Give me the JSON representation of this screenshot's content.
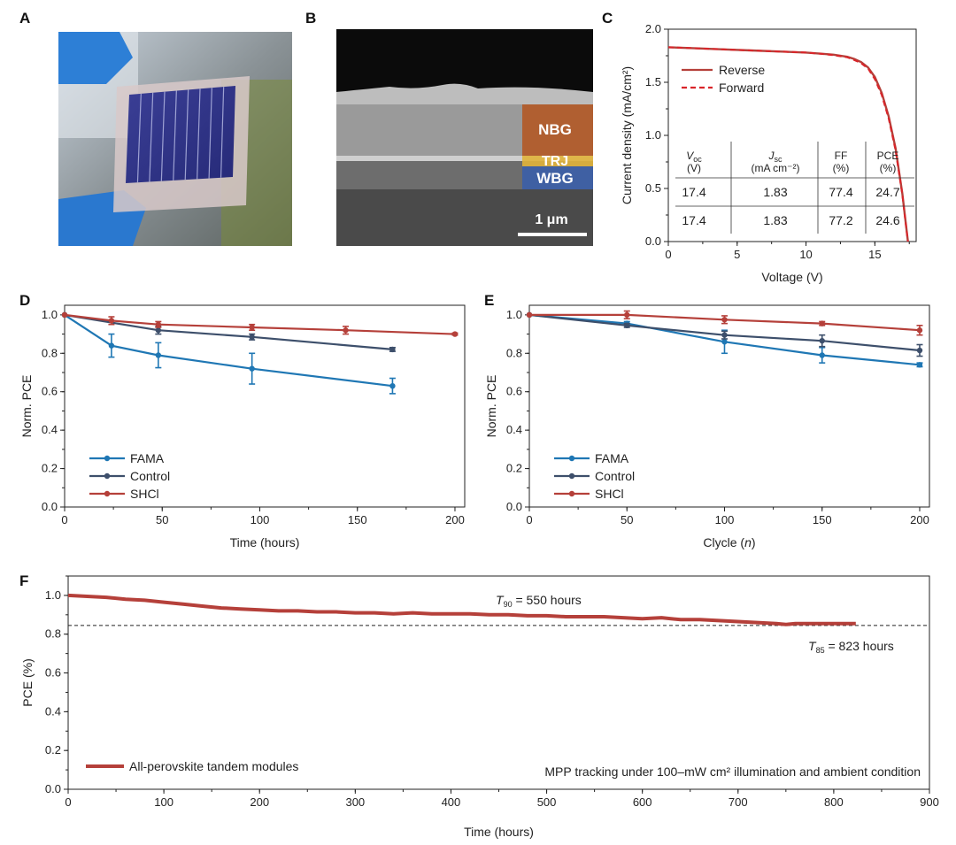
{
  "panels": {
    "A": "A",
    "B": "B",
    "C": "C",
    "D": "D",
    "E": "E",
    "F": "F"
  },
  "panel_b": {
    "layers": [
      "NBG",
      "TRJ",
      "WBG"
    ],
    "scalebar": "1 μm"
  },
  "chart_data": [
    {
      "id": "C",
      "type": "line",
      "xlabel": "Voltage (V)",
      "ylabel": "Current density (mA/cm²)",
      "xlim": [
        0,
        18
      ],
      "ylim": [
        0,
        2.0
      ],
      "xticks": [
        "0",
        "5",
        "10",
        "15"
      ],
      "yticks": [
        "0.0",
        "0.5",
        "1.0",
        "1.5",
        "2.0"
      ],
      "legend_position": "upper-left",
      "series": [
        {
          "name": "Reverse",
          "color": "#b5403a",
          "dash": "solid",
          "x": [
            0,
            2,
            4,
            6,
            8,
            10,
            11,
            12,
            13,
            13.5,
            14,
            14.5,
            15,
            15.5,
            16,
            16.5,
            17,
            17.2,
            17.4
          ],
          "y": [
            1.83,
            1.82,
            1.81,
            1.8,
            1.79,
            1.78,
            1.77,
            1.76,
            1.74,
            1.72,
            1.69,
            1.64,
            1.55,
            1.4,
            1.18,
            0.88,
            0.45,
            0.22,
            0.0
          ]
        },
        {
          "name": "Forward",
          "color": "#d9252a",
          "dash": "dashed",
          "x": [
            0,
            2,
            4,
            6,
            8,
            10,
            11,
            12,
            13,
            13.5,
            14,
            14.5,
            15,
            15.5,
            16,
            16.5,
            17,
            17.2,
            17.4
          ],
          "y": [
            1.83,
            1.82,
            1.81,
            1.8,
            1.79,
            1.78,
            1.77,
            1.755,
            1.735,
            1.71,
            1.68,
            1.63,
            1.53,
            1.38,
            1.16,
            0.86,
            0.44,
            0.21,
            0.0
          ]
        }
      ],
      "table": {
        "headers": [
          "V_oc (V)",
          "J_sc (mA cm⁻²)",
          "FF (%)",
          "PCE (%)"
        ],
        "header_main": [
          "V",
          "J",
          "FF",
          "PCE"
        ],
        "header_sub": [
          "oc",
          "sc",
          "",
          ""
        ],
        "header_unit": [
          "(V)",
          "(mA cm⁻²)",
          "(%)",
          "(%)"
        ],
        "rows": [
          [
            "17.4",
            "1.83",
            "77.4",
            "24.7"
          ],
          [
            "17.4",
            "1.83",
            "77.2",
            "24.6"
          ]
        ]
      }
    },
    {
      "id": "D",
      "type": "line",
      "xlabel": "Time (hours)",
      "ylabel": "Norm. PCE",
      "xlim": [
        0,
        205
      ],
      "ylim": [
        0,
        1.05
      ],
      "xticks": [
        "0",
        "50",
        "100",
        "150",
        "200"
      ],
      "yticks": [
        "0.0",
        "0.2",
        "0.4",
        "0.6",
        "0.8",
        "1.0"
      ],
      "legend_position": "lower-left",
      "series": [
        {
          "name": "FAMA",
          "color": "#1f77b4",
          "x": [
            0,
            24,
            48,
            96,
            168
          ],
          "y": [
            1.0,
            0.84,
            0.79,
            0.72,
            0.63
          ],
          "err": [
            0,
            0.06,
            0.065,
            0.08,
            0.04
          ]
        },
        {
          "name": "Control",
          "color": "#3d4f6b",
          "x": [
            0,
            48,
            96,
            168
          ],
          "y": [
            1.0,
            0.92,
            0.885,
            0.82
          ],
          "err": [
            0,
            0.02,
            0.015,
            0.01
          ]
        },
        {
          "name": "SHCl",
          "color": "#b5403a",
          "x": [
            0,
            24,
            48,
            96,
            144,
            200
          ],
          "y": [
            1.0,
            0.97,
            0.95,
            0.935,
            0.92,
            0.9
          ],
          "err": [
            0,
            0.02,
            0.015,
            0.015,
            0.02,
            0.005
          ]
        }
      ]
    },
    {
      "id": "E",
      "type": "line",
      "xlabel": "Clycle (n)",
      "ylabel": "Norm. PCE",
      "xlim": [
        0,
        205
      ],
      "ylim": [
        0,
        1.05
      ],
      "xticks": [
        "0",
        "50",
        "100",
        "150",
        "200"
      ],
      "yticks": [
        "0.0",
        "0.2",
        "0.4",
        "0.6",
        "0.8",
        "1.0"
      ],
      "legend_position": "lower-left",
      "series": [
        {
          "name": "FAMA",
          "color": "#1f77b4",
          "x": [
            0,
            50,
            100,
            150,
            200
          ],
          "y": [
            1.0,
            0.955,
            0.86,
            0.79,
            0.74
          ],
          "err": [
            0,
            0.01,
            0.06,
            0.04,
            0.01
          ]
        },
        {
          "name": "Control",
          "color": "#3d4f6b",
          "x": [
            0,
            50,
            100,
            150,
            200
          ],
          "y": [
            1.0,
            0.945,
            0.895,
            0.865,
            0.815
          ],
          "err": [
            0,
            0.01,
            0.02,
            0.03,
            0.03
          ]
        },
        {
          "name": "SHCl",
          "color": "#b5403a",
          "x": [
            0,
            50,
            100,
            150,
            200
          ],
          "y": [
            1.0,
            1.0,
            0.975,
            0.955,
            0.92
          ],
          "err": [
            0,
            0.02,
            0.02,
            0.01,
            0.025
          ]
        }
      ]
    },
    {
      "id": "F",
      "type": "line",
      "xlabel": "Time (hours)",
      "ylabel": "PCE (%)",
      "xlim": [
        0,
        900
      ],
      "ylim": [
        0,
        1.1
      ],
      "xticks": [
        "0",
        "100",
        "200",
        "300",
        "400",
        "500",
        "600",
        "700",
        "800",
        "900"
      ],
      "yticks": [
        "0.0",
        "0.2",
        "0.4",
        "0.6",
        "0.8",
        "1.0"
      ],
      "threshold_y": 0.845,
      "annotations": {
        "t90_main": "T",
        "t90_sub": "90",
        "t90_rest": " = 550 hours",
        "t85_main": "T",
        "t85_sub": "85",
        "t85_rest": " = 823 hours"
      },
      "note": "MPP tracking under 100–mW cm² illumination and ambient condition",
      "series": [
        {
          "name": "All-perovskite tandem modules",
          "color": "#b5403a",
          "x": [
            0,
            20,
            40,
            60,
            80,
            100,
            120,
            140,
            160,
            180,
            200,
            220,
            240,
            260,
            280,
            300,
            320,
            340,
            360,
            380,
            400,
            420,
            440,
            460,
            480,
            500,
            520,
            540,
            560,
            580,
            600,
            620,
            640,
            660,
            680,
            700,
            720,
            740,
            750,
            760,
            780,
            800,
            823
          ],
          "y": [
            1.0,
            0.995,
            0.99,
            0.98,
            0.975,
            0.965,
            0.955,
            0.945,
            0.935,
            0.93,
            0.925,
            0.92,
            0.92,
            0.915,
            0.915,
            0.91,
            0.91,
            0.905,
            0.91,
            0.905,
            0.905,
            0.905,
            0.9,
            0.9,
            0.895,
            0.895,
            0.89,
            0.89,
            0.89,
            0.885,
            0.88,
            0.885,
            0.875,
            0.875,
            0.87,
            0.865,
            0.86,
            0.855,
            0.85,
            0.855,
            0.855,
            0.855,
            0.855
          ]
        }
      ]
    }
  ]
}
